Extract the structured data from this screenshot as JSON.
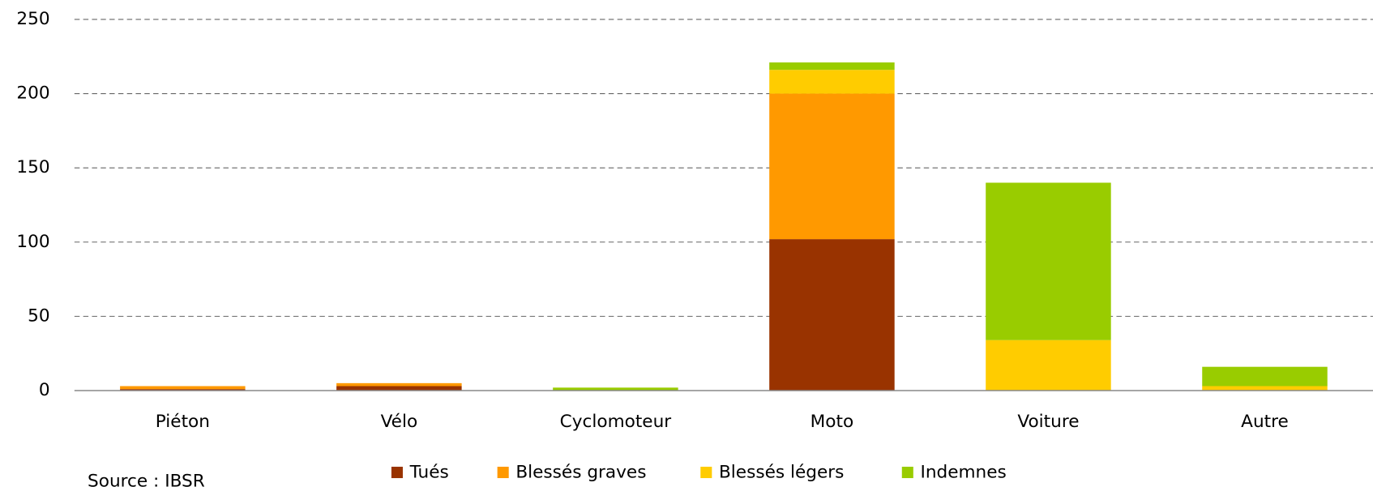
{
  "chart_data": {
    "type": "stacked_bar",
    "categories": [
      "Piéton",
      "Vélo",
      "Cyclomoteur",
      "Moto",
      "Voiture",
      "Autre"
    ],
    "series": [
      {
        "name": "Tués",
        "color": "#993300",
        "values": [
          1,
          3,
          0,
          102,
          0,
          0
        ]
      },
      {
        "name": "Blessés graves",
        "color": "#ff9900",
        "values": [
          2,
          2,
          0,
          98,
          0,
          0
        ]
      },
      {
        "name": "Blessés légers",
        "color": "#ffcc00",
        "values": [
          0,
          0,
          0,
          16,
          34,
          3
        ]
      },
      {
        "name": "Indemnes",
        "color": "#99cc00",
        "values": [
          0,
          0,
          2,
          5,
          106,
          13
        ]
      }
    ],
    "ylim": [
      0,
      250
    ],
    "yticks": [
      0,
      50,
      100,
      150,
      200,
      250
    ],
    "grid": true,
    "legend": "bottom",
    "source": "Source : IBSR"
  }
}
